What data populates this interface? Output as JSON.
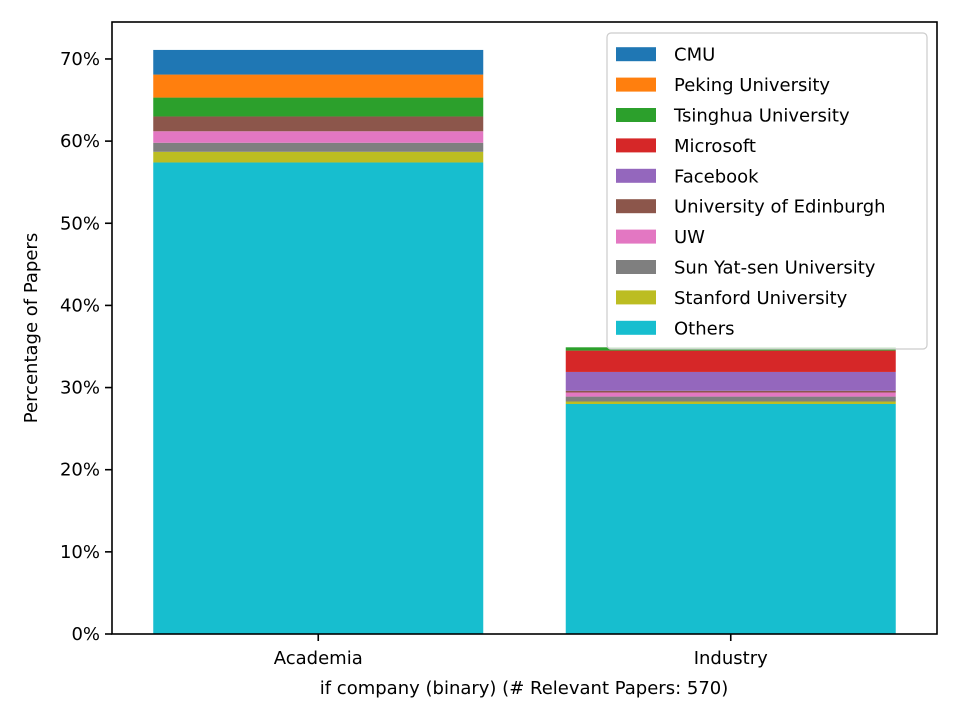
{
  "chart_data": {
    "type": "bar",
    "stacked": true,
    "categories": [
      "Academia",
      "Industry"
    ],
    "series": [
      {
        "name": "Others",
        "color": "#17becf",
        "values": [
          57.4,
          28.0
        ]
      },
      {
        "name": "Stanford University",
        "color": "#bcbd22",
        "values": [
          1.3,
          0.3
        ]
      },
      {
        "name": "Sun Yat-sen University",
        "color": "#7f7f7f",
        "values": [
          1.1,
          0.6
        ]
      },
      {
        "name": "UW",
        "color": "#e377c2",
        "values": [
          1.4,
          0.5
        ]
      },
      {
        "name": "University of Edinburgh",
        "color": "#8c564b",
        "values": [
          1.8,
          0.2
        ]
      },
      {
        "name": "Facebook",
        "color": "#9467bd",
        "values": [
          0.0,
          2.3
        ]
      },
      {
        "name": "Microsoft",
        "color": "#d62728",
        "values": [
          0.0,
          2.6
        ]
      },
      {
        "name": "Tsinghua University",
        "color": "#2ca02c",
        "values": [
          2.3,
          0.4
        ]
      },
      {
        "name": "Peking University",
        "color": "#ff7f0e",
        "values": [
          2.8,
          0.0
        ]
      },
      {
        "name": "CMU",
        "color": "#1f77b4",
        "values": [
          3.0,
          0.0
        ]
      }
    ],
    "legend_order": [
      "CMU",
      "Peking University",
      "Tsinghua University",
      "Microsoft",
      "Facebook",
      "University of Edinburgh",
      "UW",
      "Sun Yat-sen University",
      "Stanford University",
      "Others"
    ],
    "y_ticks": [
      0,
      10,
      20,
      30,
      40,
      50,
      60,
      70
    ],
    "y_tick_format": "{v}%",
    "ylim": [
      0,
      74.5
    ],
    "xlabel": "if company (binary) (# Relevant Papers: 570)",
    "ylabel": "Percentage of Papers",
    "grid": false,
    "legend_position": "top-right"
  }
}
